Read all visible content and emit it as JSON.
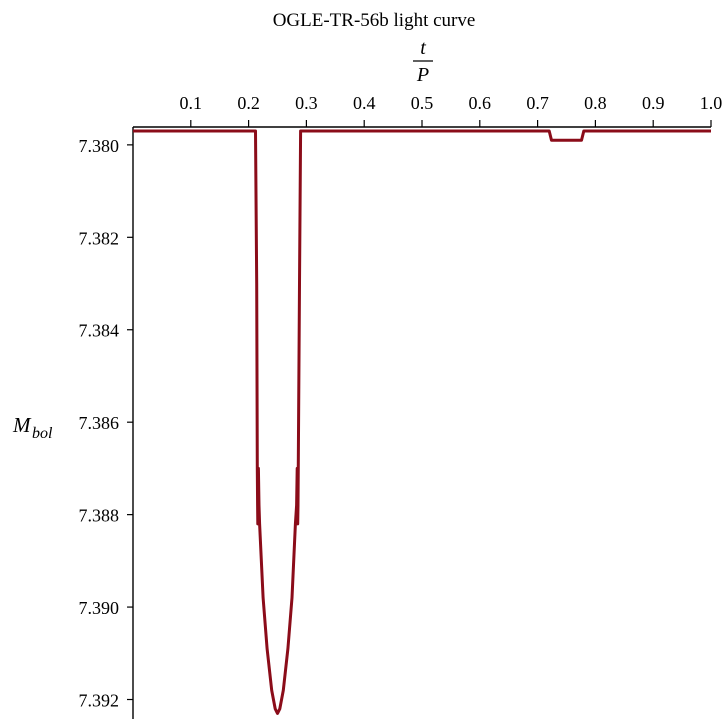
{
  "chart_data": {
    "type": "line",
    "title": "OGLE-TR-56b light curve",
    "xlabel": {
      "numerator": "t",
      "denominator": "P"
    },
    "ylabel": {
      "main": "M",
      "subscript": "bol"
    },
    "x_axis_position": "top",
    "y_axis_inverted": true,
    "grid": false,
    "xlim": [
      0,
      1.0
    ],
    "ylim": [
      7.3797,
      7.3924
    ],
    "x_ticks": [
      "0.1",
      "0.2",
      "0.3",
      "0.4",
      "0.5",
      "0.6",
      "0.7",
      "0.8",
      "0.9",
      "1.0"
    ],
    "x_tick_values": [
      0.1,
      0.2,
      0.3,
      0.4,
      0.5,
      0.6,
      0.7,
      0.8,
      0.9,
      1.0
    ],
    "y_ticks": [
      "7.380",
      "7.382",
      "7.384",
      "7.386",
      "7.388",
      "7.390",
      "7.392"
    ],
    "y_tick_values": [
      7.38,
      7.382,
      7.384,
      7.386,
      7.388,
      7.39,
      7.392
    ],
    "series": [
      {
        "color": "#8b0c19",
        "x": [
          0.0,
          0.212,
          0.214,
          0.215,
          0.2155,
          0.216,
          0.217,
          0.218,
          0.219,
          0.225,
          0.232,
          0.24,
          0.246,
          0.25,
          0.254,
          0.26,
          0.268,
          0.275,
          0.281,
          0.283,
          0.284,
          0.285,
          0.2855,
          0.286,
          0.288,
          0.29,
          0.72,
          0.724,
          0.776,
          0.78,
          1.0
        ],
        "y": [
          7.3797,
          7.3797,
          7.383,
          7.387,
          7.3878,
          7.3882,
          7.387,
          7.3878,
          7.3882,
          7.3898,
          7.3909,
          7.3918,
          7.3922,
          7.3923,
          7.3922,
          7.3918,
          7.3909,
          7.3898,
          7.3882,
          7.3878,
          7.387,
          7.3882,
          7.3878,
          7.3869,
          7.383,
          7.3797,
          7.3797,
          7.3799,
          7.3799,
          7.3797,
          7.3797
        ]
      }
    ]
  },
  "colors": {
    "axis": "#000000",
    "curve": "#8b0c19"
  }
}
